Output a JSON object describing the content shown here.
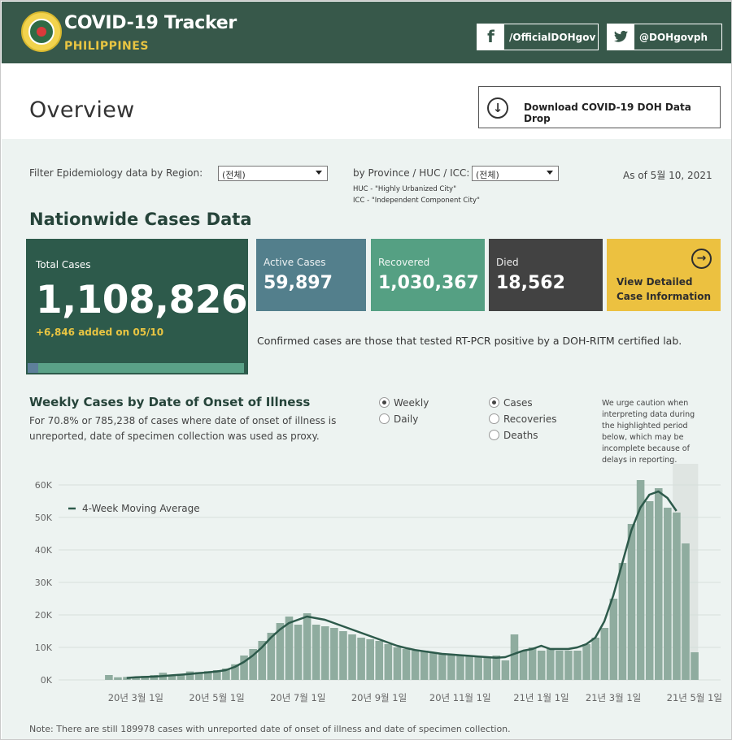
{
  "header": {
    "title": "COVID-19 Tracker",
    "subtitle": "PHILIPPINES",
    "facebook": "/OfficialDOHgov",
    "twitter": "@DOHgovph",
    "colors": {
      "bg": "#37584a",
      "accent": "#e9c542"
    }
  },
  "overview": {
    "title": "Overview",
    "download_label": "Download COVID-19 DOH Data Drop"
  },
  "filters": {
    "region_label": "Filter Epidemiology data by Region:",
    "region_value": "(전체)",
    "province_label": "by Province / HUC / ICC:",
    "province_value": "(전체)",
    "huc_note": "HUC - \"Highly Urbanized City\"",
    "icc_note": "ICC - \"Independent Component City\"",
    "as_of": "As of 5월 10, 2021"
  },
  "cases": {
    "section_title": "Nationwide Cases Data",
    "total_label": "Total Cases",
    "total_value": "1,108,826",
    "added": "+6,846 added on 05/10",
    "active_label": "Active Cases",
    "active_value": "59,897",
    "recovered_label": "Recovered",
    "recovered_value": "1,030,367",
    "died_label": "Died",
    "died_value": "18,562",
    "detail_line1": "View Detailed",
    "detail_line2": "Case Information",
    "confirmed_note": "Confirmed cases are those that tested RT-PCR positive by a DOH-RITM certified lab."
  },
  "weekly": {
    "title": "Weekly Cases by Date of Onset of Illness",
    "desc": "For 70.8% or 785,238 of cases where date of onset of illness is unreported, date of specimen collection was used as proxy.",
    "period_options": [
      {
        "label": "Weekly",
        "selected": true
      },
      {
        "label": "Daily",
        "selected": false
      }
    ],
    "metric_options": [
      {
        "label": "Cases",
        "selected": true
      },
      {
        "label": "Recoveries",
        "selected": false
      },
      {
        "label": "Deaths",
        "selected": false
      }
    ],
    "caution": "We urge caution when interpreting data during the highlighted period below, which may be incomplete because of delays in reporting.",
    "footnote": "Note: There are still 189978 cases with unreported date of onset of illness and date of specimen collection."
  },
  "chart_data": {
    "type": "bar",
    "legend": "4-Week Moving Average",
    "y_ticks": [
      "0K",
      "10K",
      "20K",
      "30K",
      "40K",
      "50K",
      "60K"
    ],
    "ylim": [
      0,
      62000
    ],
    "x_ticks": [
      "20년 3월 1일",
      "20년 5월 1일",
      "20년 7월 1일",
      "20년 9월 1일",
      "20년 11월 1일",
      "21년 1월 1일",
      "21년 3월 1일",
      "21년 5월 1일"
    ],
    "x_tick_index": [
      4,
      13,
      22,
      31,
      40,
      49,
      57,
      66
    ],
    "values": [
      0,
      1500,
      800,
      900,
      1000,
      1200,
      1500,
      2200,
      1500,
      1800,
      2600,
      2400,
      2700,
      3000,
      3500,
      4800,
      7500,
      9500,
      12000,
      14500,
      17500,
      19500,
      17000,
      20500,
      17000,
      16500,
      16000,
      15000,
      14000,
      13000,
      12500,
      12000,
      11000,
      10000,
      9500,
      9000,
      9000,
      8500,
      8000,
      8000,
      7500,
      7500,
      7000,
      7000,
      7500,
      6000,
      14000,
      9000,
      10000,
      9000,
      9500,
      9000,
      9000,
      9000,
      11000,
      13000,
      16000,
      25000,
      36000,
      48000,
      61500,
      55000,
      59000,
      53000,
      51500,
      42000,
      8500
    ],
    "moving_average": [
      null,
      null,
      null,
      600,
      800,
      900,
      1000,
      1200,
      1400,
      1600,
      1800,
      2100,
      2300,
      2600,
      3000,
      4000,
      5500,
      7500,
      10000,
      13000,
      15500,
      17500,
      18500,
      19500,
      19000,
      18500,
      17500,
      16500,
      15500,
      14500,
      13500,
      12500,
      11500,
      10500,
      9800,
      9200,
      8800,
      8400,
      8000,
      7800,
      7600,
      7400,
      7200,
      7000,
      6800,
      7000,
      8000,
      9000,
      9500,
      10500,
      9500,
      9500,
      9500,
      10000,
      11000,
      13000,
      18000,
      26000,
      36000,
      46000,
      53000,
      57000,
      58000,
      56000,
      52000,
      null,
      null
    ],
    "highlight_from_index": 64,
    "colors": {
      "bar": "#8fac9f",
      "line": "#2d5a4b",
      "highlight": "#dfe5e2"
    }
  }
}
